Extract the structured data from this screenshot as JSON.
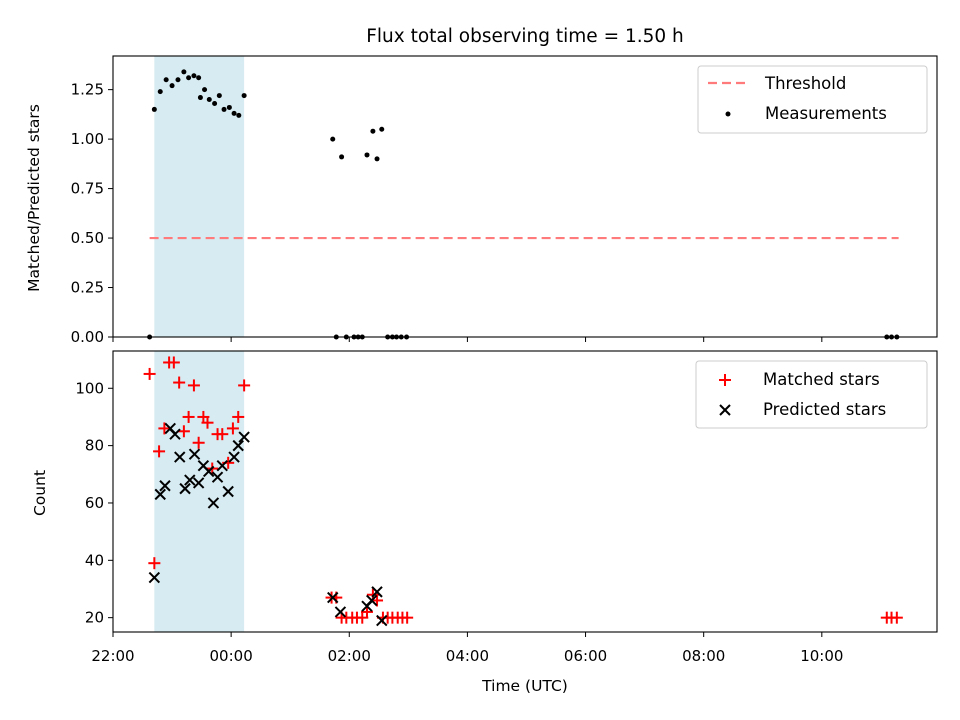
{
  "chart_data": {
    "title": "Flux total observing time = 1.50 h",
    "xlabel": "Time (UTC)",
    "x_unit": "hours relative to 00:00 UTC",
    "xlim": [
      -2.0,
      11.95
    ],
    "x_ticks": [
      {
        "value": -2,
        "label": "22:00"
      },
      {
        "value": 0,
        "label": "00:00"
      },
      {
        "value": 2,
        "label": "02:00"
      },
      {
        "value": 4,
        "label": "04:00"
      },
      {
        "value": 6,
        "label": "06:00"
      },
      {
        "value": 8,
        "label": "08:00"
      },
      {
        "value": 10,
        "label": "10:00"
      }
    ],
    "highlight_span": {
      "x0": -1.3,
      "x1": 0.22,
      "color": "#add8e6"
    },
    "panels": [
      {
        "id": "ratio",
        "type": "scatter",
        "ylabel": "Matched/Predicted stars",
        "ylim": [
          0.0,
          1.42
        ],
        "y_ticks": [
          "0.00",
          "0.25",
          "0.50",
          "0.75",
          "1.00",
          "1.25"
        ],
        "threshold": {
          "label": "Threshold",
          "value": 0.5,
          "x_range": [
            -1.38,
            11.3
          ],
          "color": "#ff7a7a"
        },
        "series": [
          {
            "name": "Measurements",
            "marker": "dot",
            "color": "#000000",
            "points": [
              [
                -1.38,
                0.0
              ],
              [
                -1.3,
                1.15
              ],
              [
                -1.2,
                1.24
              ],
              [
                -1.1,
                1.3
              ],
              [
                -1.0,
                1.27
              ],
              [
                -0.9,
                1.3
              ],
              [
                -0.8,
                1.34
              ],
              [
                -0.72,
                1.31
              ],
              [
                -0.63,
                1.32
              ],
              [
                -0.55,
                1.31
              ],
              [
                -0.52,
                1.21
              ],
              [
                -0.45,
                1.25
              ],
              [
                -0.37,
                1.2
              ],
              [
                -0.28,
                1.18
              ],
              [
                -0.2,
                1.22
              ],
              [
                -0.12,
                1.15
              ],
              [
                -0.03,
                1.16
              ],
              [
                0.05,
                1.13
              ],
              [
                0.13,
                1.12
              ],
              [
                0.22,
                1.22
              ],
              [
                1.72,
                1.0
              ],
              [
                1.78,
                0.0
              ],
              [
                1.87,
                0.91
              ],
              [
                1.95,
                0.0
              ],
              [
                2.08,
                0.0
              ],
              [
                2.15,
                0.0
              ],
              [
                2.22,
                0.0
              ],
              [
                2.3,
                0.92
              ],
              [
                2.4,
                1.04
              ],
              [
                2.47,
                0.9
              ],
              [
                2.55,
                1.05
              ],
              [
                2.65,
                0.0
              ],
              [
                2.73,
                0.0
              ],
              [
                2.8,
                0.0
              ],
              [
                2.88,
                0.0
              ],
              [
                2.97,
                0.0
              ],
              [
                11.1,
                0.0
              ],
              [
                11.18,
                0.0
              ],
              [
                11.27,
                0.0
              ]
            ]
          }
        ],
        "legend": {
          "position": "upper right",
          "entries": [
            "Threshold",
            "Measurements"
          ]
        }
      },
      {
        "id": "counts",
        "type": "scatter",
        "ylabel": "Count",
        "ylim": [
          15,
          113
        ],
        "y_ticks": [
          "20",
          "40",
          "60",
          "80",
          "100"
        ],
        "series": [
          {
            "name": "Matched stars",
            "marker": "plus",
            "color": "#ff0000",
            "points": [
              [
                -1.38,
                105
              ],
              [
                -1.3,
                39
              ],
              [
                -1.22,
                78
              ],
              [
                -1.13,
                86
              ],
              [
                -1.05,
                109
              ],
              [
                -0.97,
                109
              ],
              [
                -0.88,
                102
              ],
              [
                -0.8,
                85
              ],
              [
                -0.72,
                90
              ],
              [
                -0.63,
                101
              ],
              [
                -0.55,
                81
              ],
              [
                -0.47,
                90
              ],
              [
                -0.4,
                88
              ],
              [
                -0.32,
                72
              ],
              [
                -0.23,
                84
              ],
              [
                -0.15,
                84
              ],
              [
                -0.05,
                74
              ],
              [
                0.03,
                86
              ],
              [
                0.12,
                90
              ],
              [
                0.22,
                101
              ],
              [
                1.7,
                27
              ],
              [
                1.78,
                27
              ],
              [
                1.87,
                20
              ],
              [
                1.95,
                20
              ],
              [
                2.05,
                20
              ],
              [
                2.13,
                20
              ],
              [
                2.22,
                20
              ],
              [
                2.3,
                22
              ],
              [
                2.4,
                28
              ],
              [
                2.47,
                26
              ],
              [
                2.57,
                20
              ],
              [
                2.65,
                20
              ],
              [
                2.73,
                20
              ],
              [
                2.82,
                20
              ],
              [
                2.9,
                20
              ],
              [
                2.98,
                20
              ],
              [
                11.1,
                20
              ],
              [
                11.18,
                20
              ],
              [
                11.27,
                20
              ]
            ]
          },
          {
            "name": "Predicted stars",
            "marker": "x",
            "color": "#000000",
            "points": [
              [
                -1.3,
                34
              ],
              [
                -1.2,
                63
              ],
              [
                -1.12,
                66
              ],
              [
                -1.03,
                86
              ],
              [
                -0.95,
                84
              ],
              [
                -0.87,
                76
              ],
              [
                -0.78,
                65
              ],
              [
                -0.7,
                68
              ],
              [
                -0.62,
                77
              ],
              [
                -0.55,
                67
              ],
              [
                -0.47,
                73
              ],
              [
                -0.38,
                71
              ],
              [
                -0.3,
                60
              ],
              [
                -0.23,
                69
              ],
              [
                -0.15,
                73
              ],
              [
                -0.05,
                64
              ],
              [
                0.05,
                76
              ],
              [
                0.12,
                80
              ],
              [
                0.22,
                83
              ],
              [
                1.72,
                27
              ],
              [
                1.85,
                22
              ],
              [
                2.3,
                24
              ],
              [
                2.38,
                26
              ],
              [
                2.47,
                29
              ],
              [
                2.55,
                19
              ]
            ]
          }
        ],
        "legend": {
          "position": "upper right",
          "entries": [
            "Matched stars",
            "Predicted stars"
          ]
        }
      }
    ]
  }
}
